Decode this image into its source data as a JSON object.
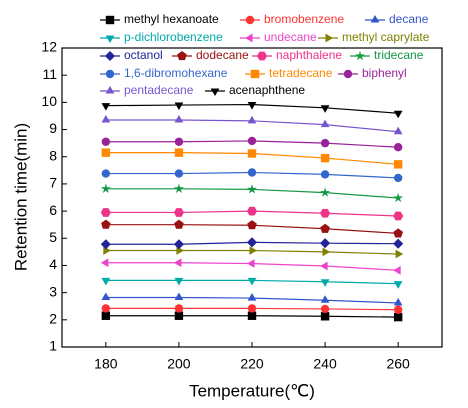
{
  "chart_data": {
    "type": "line",
    "x_label": "Temperature(℃)",
    "y_label": "Retention time(min)",
    "x": [
      180,
      200,
      220,
      240,
      260
    ],
    "xlim": [
      168,
      272
    ],
    "xticks": [
      180,
      200,
      220,
      240,
      260
    ],
    "ylim": [
      1,
      12
    ],
    "yticks": [
      1,
      2,
      3,
      4,
      5,
      6,
      7,
      8,
      9,
      10,
      11,
      12
    ],
    "series": [
      {
        "name": "methyl hexanoate",
        "color": "#000000",
        "marker": "square",
        "values": [
          2.15,
          2.15,
          2.15,
          2.13,
          2.1
        ]
      },
      {
        "name": "bromobenzene",
        "color": "#ff3333",
        "marker": "circle",
        "values": [
          2.42,
          2.42,
          2.42,
          2.4,
          2.37
        ]
      },
      {
        "name": "decane",
        "color": "#3355cc",
        "marker": "triangle-up",
        "values": [
          2.82,
          2.82,
          2.8,
          2.72,
          2.62
        ]
      },
      {
        "name": "p-dichlorobenzene",
        "color": "#00aaaa",
        "marker": "triangle-down",
        "values": [
          3.45,
          3.45,
          3.45,
          3.4,
          3.33
        ]
      },
      {
        "name": "undecane",
        "color": "#ee44cc",
        "marker": "triangle-left",
        "values": [
          4.1,
          4.1,
          4.07,
          3.98,
          3.82
        ]
      },
      {
        "name": "methyl caprylate",
        "color": "#808000",
        "marker": "triangle-right",
        "values": [
          4.55,
          4.55,
          4.55,
          4.5,
          4.42
        ]
      },
      {
        "name": "octanol",
        "color": "#222299",
        "marker": "diamond",
        "values": [
          4.78,
          4.78,
          4.85,
          4.82,
          4.8
        ]
      },
      {
        "name": "dodecane",
        "color": "#991111",
        "marker": "pentagon",
        "values": [
          5.5,
          5.5,
          5.48,
          5.35,
          5.18
        ]
      },
      {
        "name": "naphthalene",
        "color": "#ee3388",
        "marker": "hexagon",
        "values": [
          5.95,
          5.95,
          6.0,
          5.92,
          5.82
        ]
      },
      {
        "name": "tridecane",
        "color": "#119944",
        "marker": "star",
        "values": [
          6.82,
          6.82,
          6.8,
          6.68,
          6.48
        ]
      },
      {
        "name": "1,6-dibromohexane",
        "color": "#3366cc",
        "marker": "circle",
        "values": [
          7.38,
          7.38,
          7.42,
          7.35,
          7.22
        ]
      },
      {
        "name": "tetradecane",
        "color": "#ff8800",
        "marker": "square",
        "values": [
          8.15,
          8.15,
          8.12,
          7.95,
          7.72
        ]
      },
      {
        "name": "biphenyl",
        "color": "#992299",
        "marker": "circle",
        "values": [
          8.55,
          8.55,
          8.58,
          8.5,
          8.35
        ]
      },
      {
        "name": "pentadecane",
        "color": "#7755cc",
        "marker": "triangle-up",
        "values": [
          9.35,
          9.35,
          9.32,
          9.18,
          8.92
        ]
      },
      {
        "name": "acenaphthene",
        "color": "#000000",
        "marker": "triangle-down",
        "values": [
          9.88,
          9.9,
          9.92,
          9.8,
          9.6
        ]
      }
    ]
  }
}
